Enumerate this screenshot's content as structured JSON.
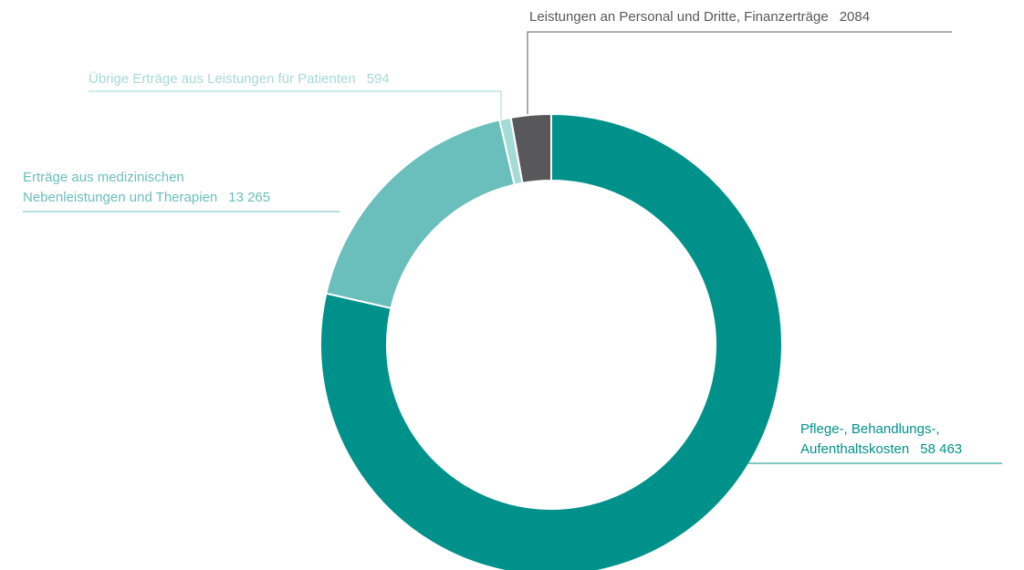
{
  "chart_data": {
    "type": "donut",
    "categories": [
      "Pflege-, Behandlungs-,\nAufenthaltskosten",
      "Erträge aus medizinischen\nNebenleistungen und Therapien",
      "Übrige Erträge aus Leistungen für Patienten",
      "Leistungen an Personal und Dritte, Finanzerträge"
    ],
    "values": [
      58463,
      13265,
      594,
      2084
    ],
    "value_labels": [
      "58 463",
      "13 265",
      "594",
      "2084"
    ],
    "colors": [
      "#00928a",
      "#6abfbc",
      "#a6dad7",
      "#58585a"
    ]
  }
}
